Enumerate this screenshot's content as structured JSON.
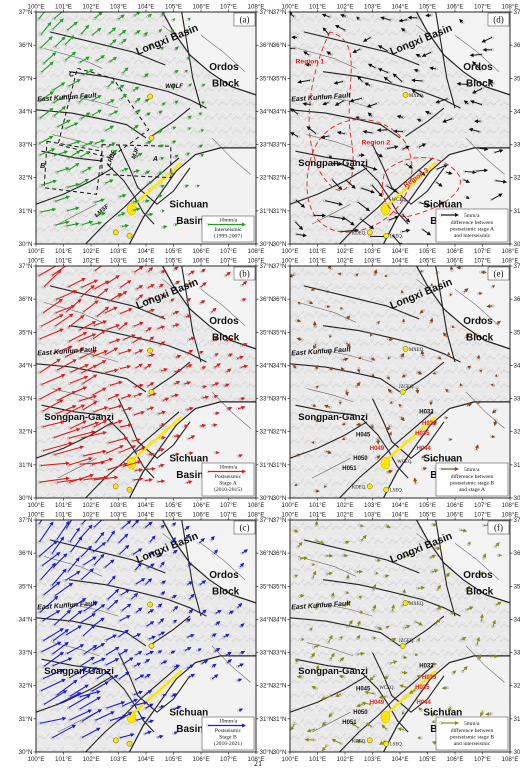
{
  "page_number": "21",
  "lon_ticks": [
    "100°E",
    "101°E",
    "102°E",
    "103°E",
    "104°E",
    "105°E",
    "106°E",
    "107°E",
    "108°E"
  ],
  "lat_ticks": [
    "37°N",
    "36°N",
    "35°N",
    "34°N",
    "33°N",
    "32°N",
    "31°N",
    "30°N"
  ],
  "labels": {
    "longxi": "Longxi Basin",
    "ordos1": "Ordos",
    "ordos2": "Block",
    "east_kunlun": "East Kunlun Fault",
    "songpan": "Songpan-Ganzi",
    "sichuan1": "Sichuan",
    "sichuan2": "Basin",
    "wqlf": "WQLF",
    "lrbf": "LRBF",
    "mjf": "MJF",
    "lmsf": "LMSF",
    "box_c": "C",
    "box_b": "B",
    "box_a": "A",
    "region1": "Region 1",
    "region2": "Region 2",
    "region3": "Region 3",
    "mxeq": "MXEQ.",
    "kdeq": "KDEQ.",
    "lseq": "LSEQ.",
    "jzgeq": "JZGEQ.",
    "wceq": "WCEQ.",
    "h032": "H032",
    "h033": "H033",
    "h035": "H035",
    "h044": "H044",
    "h045": "H045",
    "h049": "H049",
    "h050": "H050",
    "h051": "H051"
  },
  "panels": [
    {
      "id": "a",
      "letter": "(a)",
      "arrow_color": "#1aa31a",
      "scale": "10mm/a",
      "legend": [
        "Interseismic",
        "(1999-2007)"
      ],
      "kind": "velocity"
    },
    {
      "id": "d",
      "letter": "(d)",
      "arrow_color": "#111111",
      "scale": "5mm/a",
      "legend": [
        "difference between",
        "postseismic stage A",
        "and interseismic"
      ],
      "kind": "diff"
    },
    {
      "id": "b",
      "letter": "(b)",
      "arrow_color": "#e11a1a",
      "scale": "10mm/a",
      "legend": [
        "Postseismic",
        "Stage A",
        "(2010-2015)"
      ],
      "kind": "velocity"
    },
    {
      "id": "e",
      "letter": "(e)",
      "arrow_color": "#8b4513",
      "scale": "5mm/a",
      "legend": [
        "difference between",
        "postseismic stage B",
        "and stage A"
      ],
      "kind": "diff"
    },
    {
      "id": "c",
      "letter": "(c)",
      "arrow_color": "#1a1ae0",
      "scale": "10mm/a",
      "legend": [
        "Postseismic",
        "Stage B",
        "(2016-2021)"
      ],
      "kind": "velocity"
    },
    {
      "id": "f",
      "letter": "(f)",
      "arrow_color": "#8a8a10",
      "scale": "5mm/a",
      "legend": [
        "difference between",
        "postseismic stage B",
        "and interseismic"
      ],
      "kind": "diff"
    }
  ]
}
